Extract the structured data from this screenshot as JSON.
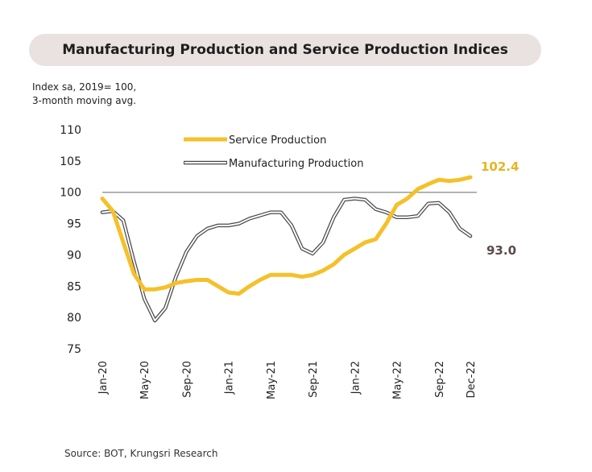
{
  "title": "Manufacturing Production and Service Production Indices",
  "ylabel_lines": [
    "Index sa, 2019= 100,",
    "3-month moving avg."
  ],
  "source": "Source: BOT, Krungsri Research",
  "colors": {
    "service": "#f5c02a",
    "manufacturing": "#ffffff",
    "manufacturing_outline": "#4a4a4a",
    "reference": "#9a9a9a",
    "service_label": "#e8b423",
    "manufacturing_label": "#5a4a4a"
  },
  "chart_data": {
    "type": "line",
    "ylim": [
      75,
      110
    ],
    "yticks": [
      75,
      80,
      85,
      90,
      95,
      100,
      105,
      110
    ],
    "reference_line": 100,
    "x_start": "Jan-20",
    "x_end": "Dec-22",
    "xtick_labels": [
      "Jan-20",
      "May-20",
      "Sep-20",
      "Jan-21",
      "May-21",
      "Sep-21",
      "Jan-22",
      "May-22",
      "Sep-22",
      "Dec-22"
    ],
    "legend_position": "top-center",
    "series": [
      {
        "name": "Service Production",
        "values": [
          99.0,
          97.0,
          92.0,
          87.0,
          84.5,
          84.5,
          84.8,
          85.5,
          85.8,
          86.0,
          86.0,
          85.0,
          84.0,
          83.8,
          85.0,
          86.0,
          86.8,
          86.8,
          86.8,
          86.5,
          86.8,
          87.5,
          88.5,
          90.0,
          91.0,
          92.0,
          92.5,
          95.0,
          98.0,
          99.0,
          100.5,
          101.3,
          102.0,
          101.8,
          102.0,
          102.4
        ],
        "end_label": "102.4"
      },
      {
        "name": "Manufacturing Production",
        "values": [
          96.8,
          97.0,
          95.5,
          89.0,
          83.0,
          79.5,
          81.5,
          86.5,
          90.5,
          93.0,
          94.2,
          94.7,
          94.7,
          95.0,
          95.8,
          96.3,
          96.8,
          96.8,
          94.7,
          91.0,
          90.2,
          92.0,
          96.0,
          98.8,
          99.0,
          98.8,
          97.3,
          96.8,
          96.0,
          96.0,
          96.2,
          98.2,
          98.3,
          96.8,
          94.2,
          93.0
        ],
        "end_label": "93.0"
      }
    ]
  }
}
